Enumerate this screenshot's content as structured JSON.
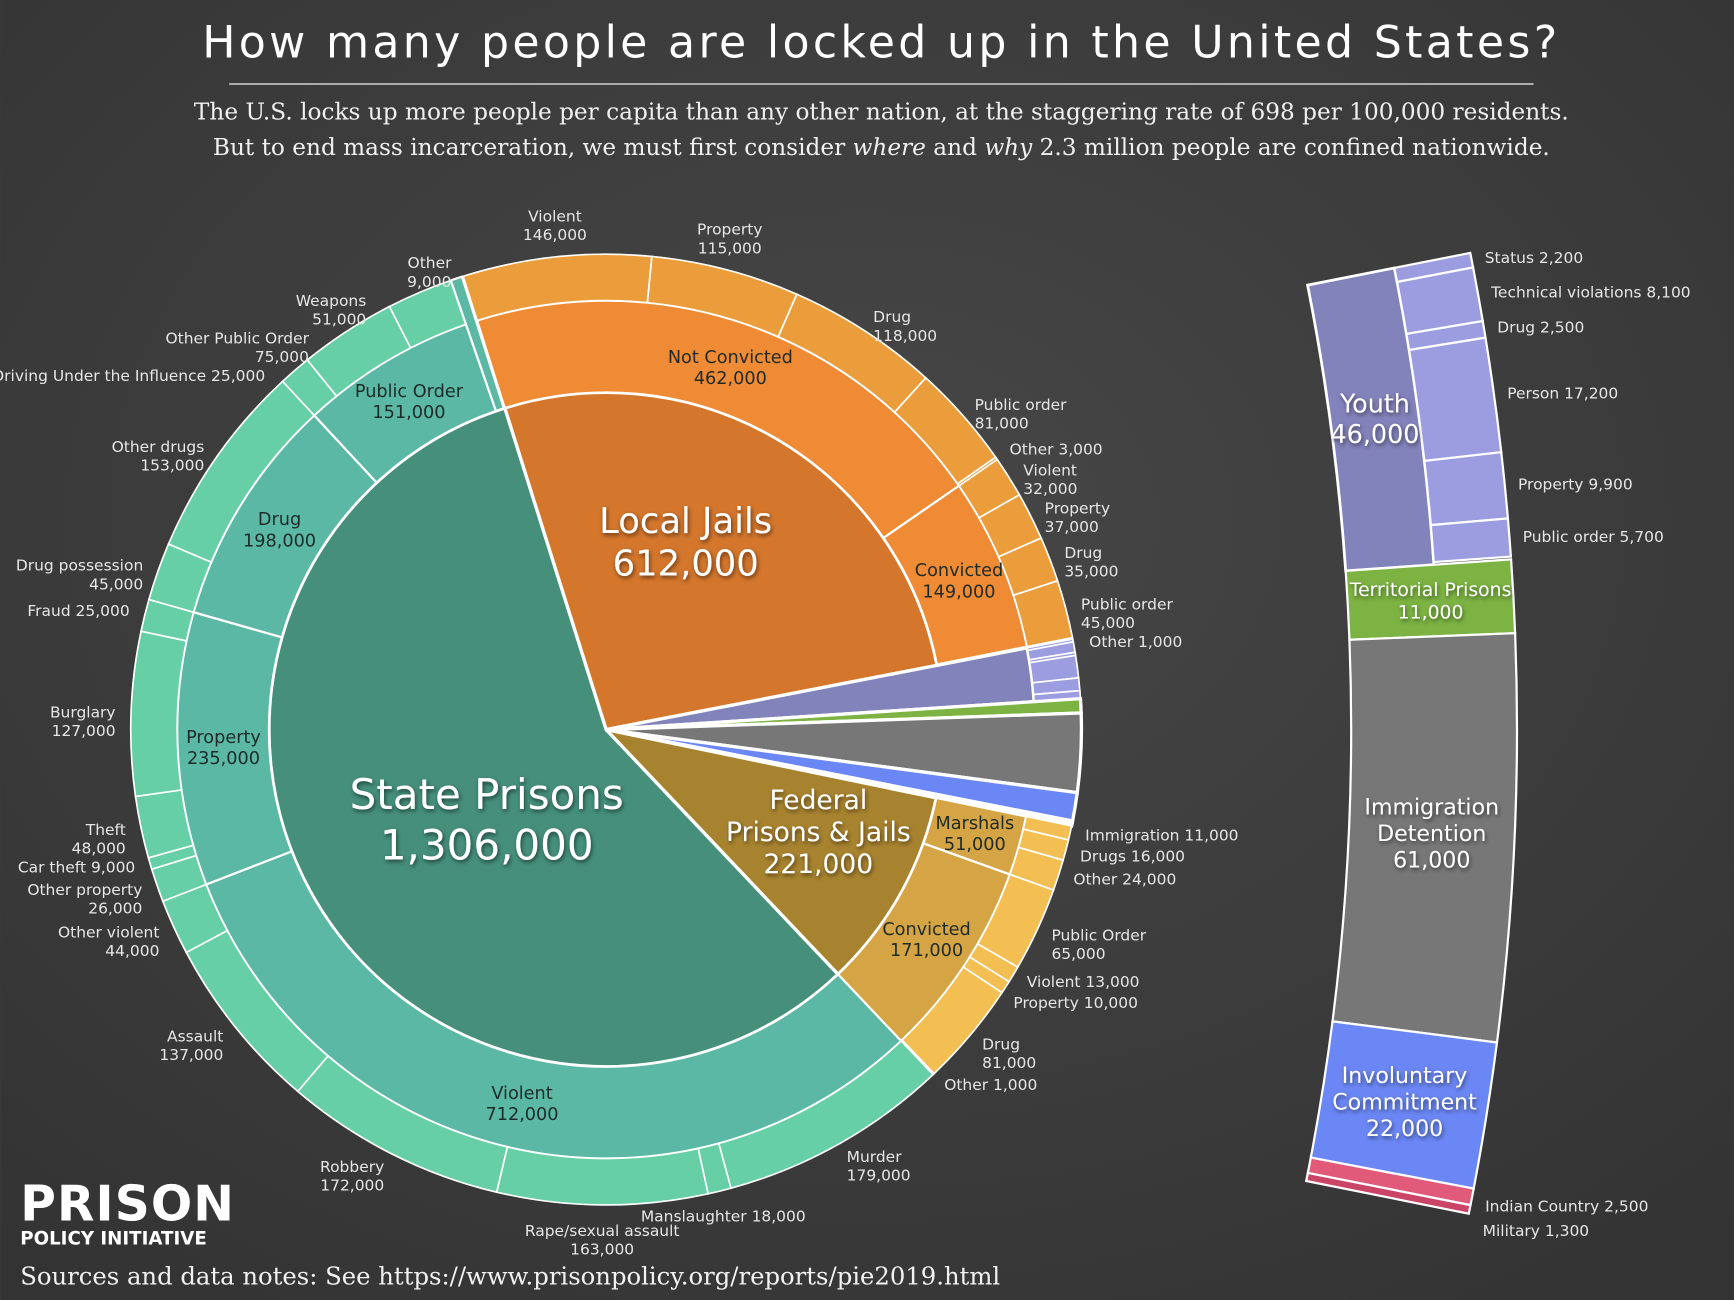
{
  "header": {
    "title": "How many people are locked up in the United States?",
    "subtitle_line1": "The U.S. locks up more people per capita than any other nation, at the staggering rate of 698 per 100,000 residents.",
    "subtitle_line2_parts": [
      "But to end mass incarceration, we must first consider ",
      "where",
      " and ",
      "why",
      " 2.3 million people are confined nationwide."
    ]
  },
  "footer": {
    "logo_top": "PRISON",
    "logo_bottom": "POLICY INITIATIVE",
    "sources": "Sources and data notes: See https://www.prisonpolicy.org/reports/pie2019.html"
  },
  "chart_data": {
    "type": "pie",
    "variant": "sunburst with side detail bar",
    "title": "How many people are locked up in the United States?",
    "segments": [
      {
        "name": "Local Jails",
        "value": 612000,
        "color": "#d4762c",
        "child_color": "#ef8a35",
        "leaf_color": "#eb9d3b",
        "children": [
          {
            "name": "Not Convicted",
            "value": 462000,
            "children": [
              {
                "name": "Violent",
                "value": 146000
              },
              {
                "name": "Property",
                "value": 115000
              },
              {
                "name": "Drug",
                "value": 118000
              },
              {
                "name": "Public order",
                "value": 81000
              },
              {
                "name": "Other",
                "value": 3000
              }
            ]
          },
          {
            "name": "Convicted",
            "value": 149000,
            "children": [
              {
                "name": "Violent",
                "value": 32000
              },
              {
                "name": "Property",
                "value": 37000
              },
              {
                "name": "Drug",
                "value": 35000
              },
              {
                "name": "Public order",
                "value": 45000
              },
              {
                "name": "Other",
                "value": 1000
              }
            ]
          }
        ]
      },
      {
        "name": "Youth",
        "value": 46000,
        "color": "#8383bb",
        "child_color": "#9c9ce0",
        "children": [
          {
            "name": "Status",
            "value": 2200
          },
          {
            "name": "Technical violations",
            "value": 8100
          },
          {
            "name": "Drug",
            "value": 2500
          },
          {
            "name": "Person",
            "value": 17200
          },
          {
            "name": "Property",
            "value": 9900
          },
          {
            "name": "Public order",
            "value": 5700
          }
        ]
      },
      {
        "name": "Territorial Prisons",
        "value": 11000,
        "color": "#7cb342"
      },
      {
        "name": "Immigration Detention",
        "value": 61000,
        "color": "#777777"
      },
      {
        "name": "Involuntary Commitment",
        "value": 22000,
        "color": "#6b87f5"
      },
      {
        "name": "Indian Country",
        "value": 2500,
        "color": "#e25a7a"
      },
      {
        "name": "Military",
        "value": 1300,
        "color": "#c94466"
      },
      {
        "name": "Federal Prisons & Jails",
        "value": 221000,
        "color": "#a8832f",
        "child_color": "#d4a445",
        "leaf_color": "#f3bf52",
        "children": [
          {
            "name": "Marshals",
            "value": 51000,
            "children": [
              {
                "name": "Immigration",
                "value": 11000
              },
              {
                "name": "Drugs",
                "value": 16000
              },
              {
                "name": "Other",
                "value": 24000
              }
            ]
          },
          {
            "name": "Convicted",
            "value": 171000,
            "children": [
              {
                "name": "Public Order",
                "value": 65000
              },
              {
                "name": "Violent",
                "value": 13000
              },
              {
                "name": "Property",
                "value": 10000
              },
              {
                "name": "Drug",
                "value": 81000
              },
              {
                "name": "Other",
                "value": 1000
              }
            ]
          }
        ]
      },
      {
        "name": "State Prisons",
        "value": 1306000,
        "color": "#458f7b",
        "child_color": "#5bb8a4",
        "leaf_color": "#66cfa6",
        "children": [
          {
            "name": "Violent",
            "value": 712000,
            "children": [
              {
                "name": "Murder",
                "value": 179000
              },
              {
                "name": "Manslaughter",
                "value": 18000
              },
              {
                "name": "Rape/sexual assault",
                "value": 163000
              },
              {
                "name": "Robbery",
                "value": 172000
              },
              {
                "name": "Assault",
                "value": 137000
              },
              {
                "name": "Other violent",
                "value": 44000
              }
            ]
          },
          {
            "name": "Property",
            "value": 235000,
            "children": [
              {
                "name": "Other property",
                "value": 26000
              },
              {
                "name": "Car theft",
                "value": 9000
              },
              {
                "name": "Theft",
                "value": 48000
              },
              {
                "name": "Burglary",
                "value": 127000
              },
              {
                "name": "Fraud",
                "value": 25000
              }
            ]
          },
          {
            "name": "Drug",
            "value": 198000,
            "children": [
              {
                "name": "Drug possession",
                "value": 45000
              },
              {
                "name": "Other drugs",
                "value": 153000
              }
            ]
          },
          {
            "name": "Public Order",
            "value": 151000,
            "children": [
              {
                "name": "Driving Under the Influence",
                "value": 25000
              },
              {
                "name": "Other Public Order",
                "value": 75000
              },
              {
                "name": "Weapons",
                "value": 51000
              }
            ]
          },
          {
            "name": "Other",
            "value": 9000
          }
        ]
      }
    ]
  }
}
